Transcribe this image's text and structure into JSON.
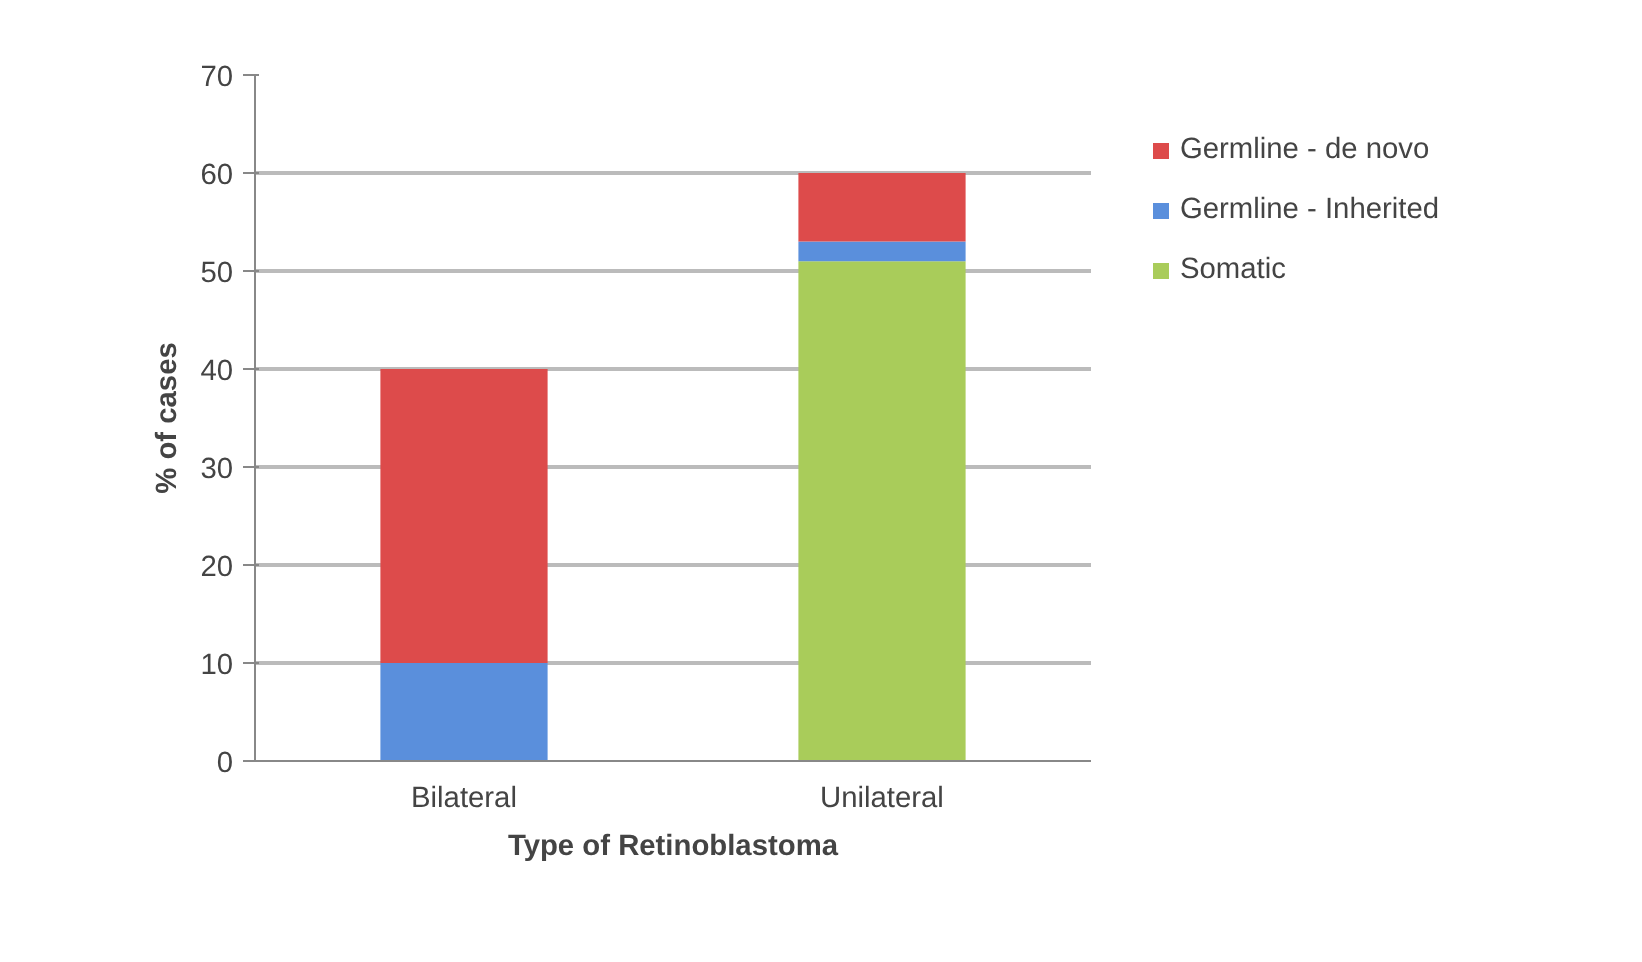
{
  "chart_data": {
    "type": "bar",
    "stacked": true,
    "xlabel": "Type of Retinoblastoma",
    "ylabel": "% of cases",
    "categories": [
      "Bilateral",
      "Unilateral"
    ],
    "series": [
      {
        "name": "Somatic",
        "color": "#a9cc5a",
        "values": [
          0,
          51
        ]
      },
      {
        "name": "Germline - Inherited",
        "color": "#5a8fdc",
        "values": [
          10,
          2
        ]
      },
      {
        "name": "Germline - de novo",
        "color": "#dd4b4b",
        "values": [
          30,
          7
        ]
      }
    ],
    "ylim": [
      0,
      70
    ],
    "yticks": [
      0,
      10,
      20,
      30,
      40,
      50,
      60,
      70
    ],
    "grid": "y",
    "legend": "right"
  }
}
